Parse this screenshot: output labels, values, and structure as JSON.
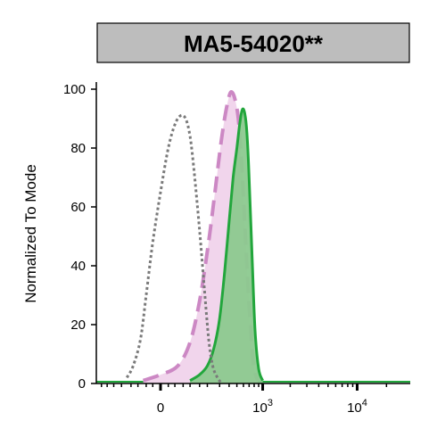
{
  "chart_data": {
    "type": "area",
    "title": "MA5-54020**",
    "xlabel": "",
    "ylabel": "Normalized To Mode",
    "ylim": [
      0,
      100
    ],
    "x_scale": "biexponential",
    "xlim": [
      -320,
      20000
    ],
    "y_ticks": [
      "0",
      "20",
      "40",
      "60",
      "80",
      "100"
    ],
    "y_tick_values": [
      0,
      20,
      40,
      60,
      80,
      100
    ],
    "x_ticks": [
      {
        "base": "0",
        "exp": "",
        "value": 0
      },
      {
        "base": "10",
        "exp": "3",
        "value": 1000
      },
      {
        "base": "10",
        "exp": "4",
        "value": 10000
      }
    ],
    "grid": false,
    "legend": "none",
    "series": [
      {
        "style": "gray-dotted-outline",
        "color": "#7a7a7a",
        "x": [
          -120,
          -90,
          -60,
          -40,
          -20,
          0,
          20,
          40,
          60,
          80,
          100,
          120,
          150,
          180,
          210,
          240,
          280,
          320
        ],
        "y": [
          2,
          6,
          15,
          30,
          48,
          65,
          80,
          88,
          91,
          90,
          84,
          72,
          52,
          32,
          15,
          6,
          2,
          0
        ]
      },
      {
        "style": "pink-dashed-filled",
        "color": "#cc88c4",
        "fill": "#f1d5ec",
        "x": [
          -50,
          0,
          50,
          100,
          150,
          200,
          250,
          300,
          340,
          380,
          420,
          470,
          520,
          570,
          620,
          680,
          740,
          800,
          880
        ],
        "y": [
          1,
          3,
          6,
          14,
          28,
          45,
          62,
          78,
          88,
          95,
          99,
          97,
          90,
          75,
          55,
          33,
          15,
          5,
          1
        ]
      },
      {
        "style": "green-solid-filled",
        "color": "#22a63c",
        "fill": "#8cc98f",
        "x": [
          100,
          150,
          200,
          250,
          300,
          350,
          400,
          450,
          500,
          540,
          580,
          620,
          660,
          700,
          760,
          820,
          900,
          1000
        ],
        "y": [
          1,
          3,
          6,
          12,
          22,
          38,
          55,
          70,
          80,
          88,
          93,
          92,
          85,
          70,
          42,
          18,
          5,
          1
        ]
      }
    ]
  }
}
